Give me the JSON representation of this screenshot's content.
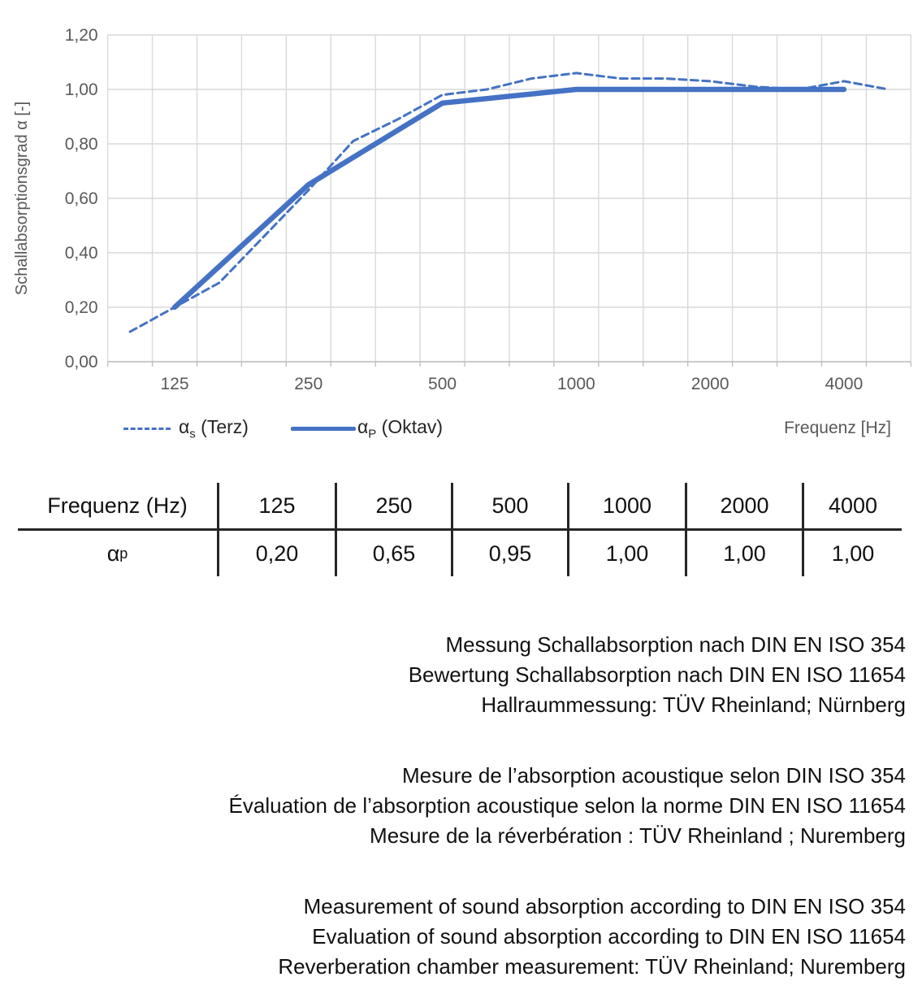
{
  "chart_data": {
    "type": "line",
    "title": "",
    "xlabel": "Frequenz [Hz]",
    "ylabel": "Schallabsorptionsgrad α [-]",
    "x_scale": "logarithmic (third-octave bands as equal-width categories)",
    "ylim": [
      0.0,
      1.2
    ],
    "y_ticks": [
      "0,00",
      "0,20",
      "0,40",
      "0,60",
      "0,80",
      "1,00",
      "1,20"
    ],
    "x_tick_labels": [
      "125",
      "250",
      "500",
      "1000",
      "2000",
      "4000"
    ],
    "grid": true,
    "legend_position": "bottom-left",
    "bands": [
      100,
      125,
      160,
      200,
      250,
      315,
      400,
      500,
      630,
      800,
      1000,
      1250,
      1600,
      2000,
      2500,
      3150,
      4000,
      5000
    ],
    "series": [
      {
        "name": "αs (Terz)",
        "style": "dashed",
        "color": "#4472C4",
        "x": [
          100,
          125,
          160,
          200,
          250,
          315,
          400,
          500,
          630,
          800,
          1000,
          1250,
          1600,
          2000,
          2500,
          3150,
          4000,
          5000
        ],
        "values": [
          0.11,
          0.2,
          0.29,
          0.46,
          0.63,
          0.81,
          0.89,
          0.98,
          1.0,
          1.04,
          1.06,
          1.04,
          1.04,
          1.03,
          1.01,
          1.0,
          1.03,
          1.0
        ]
      },
      {
        "name": "αP (Oktav)",
        "style": "solid",
        "color": "#4472C4",
        "x": [
          125,
          250,
          500,
          1000,
          2000,
          4000
        ],
        "values": [
          0.2,
          0.65,
          0.95,
          1.0,
          1.0,
          1.0
        ]
      }
    ]
  },
  "legend": {
    "terz_alpha": "α",
    "terz_sub": "s",
    "terz_rest": " (Terz)",
    "oktav_alpha": "α",
    "oktav_sub": "P",
    "oktav_rest": " (Oktav)",
    "x_axis_label": "Frequenz [Hz]"
  },
  "table": {
    "header_label": "Frequenz (Hz)",
    "row_label_alpha": "α",
    "row_label_sub": "p",
    "frequencies": [
      "125",
      "250",
      "500",
      "1000",
      "2000",
      "4000"
    ],
    "values": [
      "0,20",
      "0,65",
      "0,95",
      "1,00",
      "1,00",
      "1,00"
    ]
  },
  "notes": {
    "german": [
      "Messung Schallabsorption nach DIN EN ISO 354",
      "Bewertung Schallabsorption nach DIN EN ISO 11654",
      "Hallraummessung: TÜV Rheinland; Nürnberg"
    ],
    "french": [
      "Mesure de l’absorption acoustique selon DIN ISO 354",
      "Évaluation de l’absorption acoustique selon la norme DIN EN ISO 11654",
      "Mesure de la réverbération : TÜV Rheinland ; Nuremberg"
    ],
    "english": [
      "Measurement of sound absorption according to DIN EN ISO 354",
      "Evaluation of sound absorption according to DIN EN ISO 11654",
      "Reverberation chamber measurement: TÜV Rheinland; Nuremberg"
    ]
  },
  "colors": {
    "line_blue": "#4472C4",
    "grid": "#D9D9D9",
    "axis_line": "#BFBFBF",
    "axis_text": "#595959",
    "table_line": "#262626",
    "text": "#111111"
  }
}
